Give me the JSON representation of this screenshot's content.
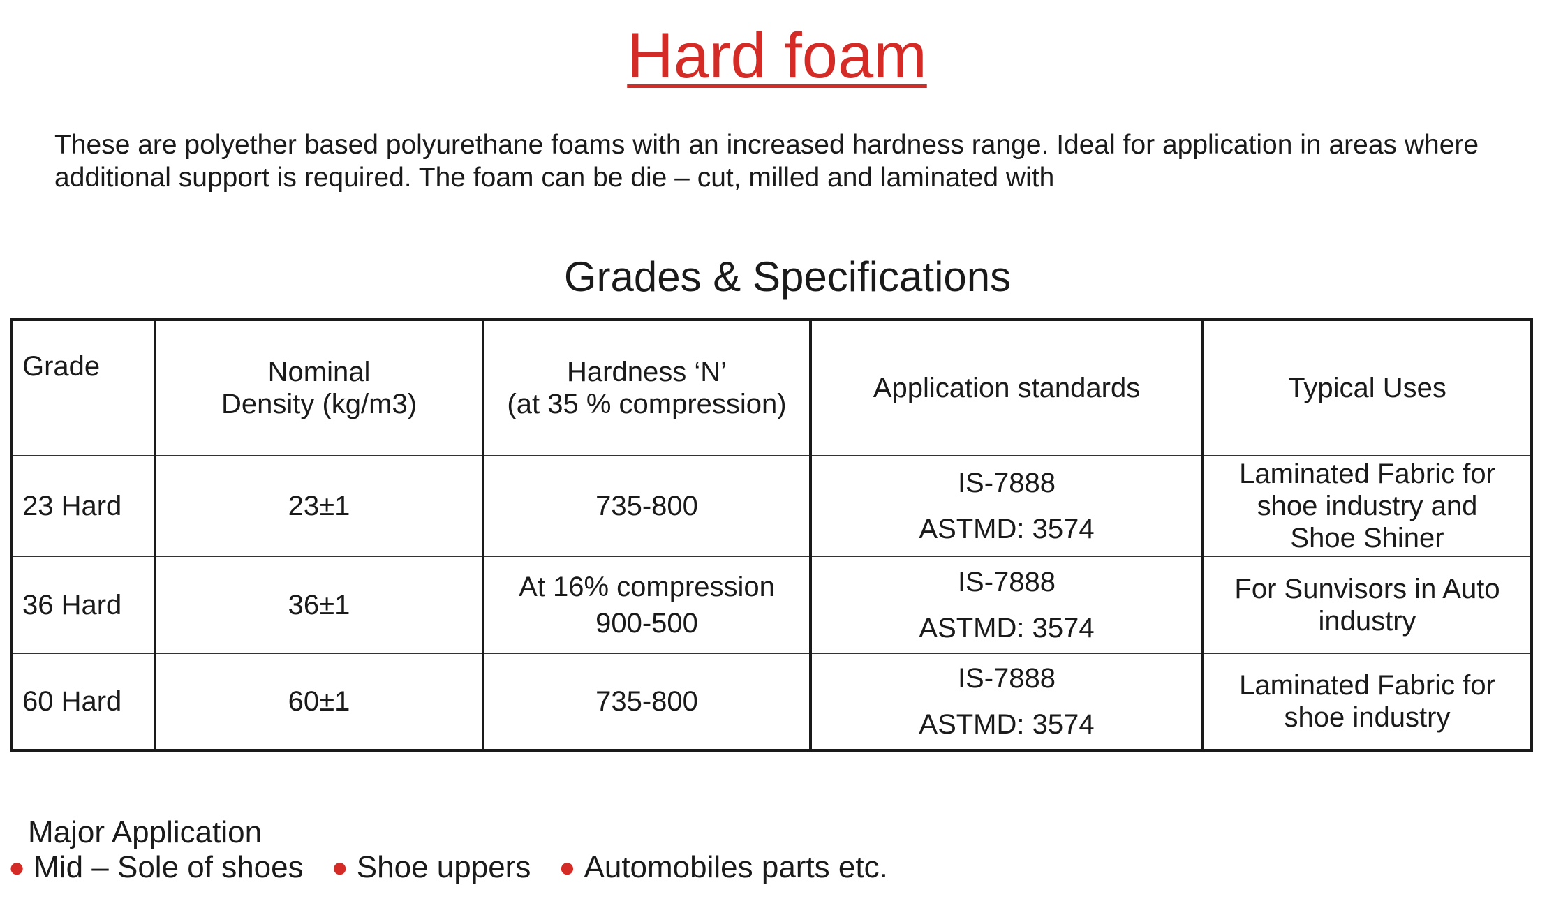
{
  "title": "Hard foam",
  "intro": "These are polyether based polyurethane foams with an increased hardness range. Ideal for application in areas where additional support is required. The foam can be die – cut, milled and laminated with",
  "subtitle": "Grades & Specifications",
  "table": {
    "headers": [
      "Grade",
      "Nominal\nDensity (kg/m3)",
      "Hardness ‘N’\n(at 35 % compression)",
      "Application standards",
      "Typical Uses"
    ],
    "rows": [
      {
        "grade": "23 Hard",
        "density": "23±1",
        "hardness": "735-800",
        "standards": [
          "IS-7888",
          "ASTMD: 3574"
        ],
        "uses": "Laminated Fabric for shoe industry and Shoe Shiner"
      },
      {
        "grade": "36 Hard",
        "density": "36±1",
        "hardness": "At 16% compression 900-500",
        "standards": [
          "IS-7888",
          "ASTMD: 3574"
        ],
        "uses": "For Sunvisors in Auto industry"
      },
      {
        "grade": "60 Hard",
        "density": "60±1",
        "hardness": "735-800",
        "standards": [
          "IS-7888",
          "ASTMD: 3574"
        ],
        "uses": "Laminated Fabric for shoe industry"
      }
    ]
  },
  "applications": {
    "heading": "Major Application",
    "items": [
      "Mid – Sole of shoes",
      "Shoe uppers",
      "Automobiles parts etc."
    ],
    "bullet_color": "#d52b26"
  },
  "colors": {
    "accent": "#d52b26"
  }
}
